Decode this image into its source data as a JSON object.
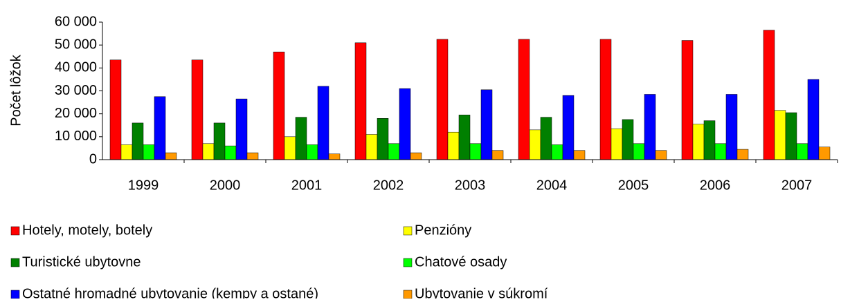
{
  "chart_data": {
    "type": "bar",
    "y_label": "Počet lôžok",
    "categories": [
      "1999",
      "2000",
      "2001",
      "2002",
      "2003",
      "2004",
      "2005",
      "2006",
      "2007"
    ],
    "series": [
      {
        "name": "Hotely, motely, botely",
        "color": "#ff0000",
        "values": [
          43500,
          43500,
          47000,
          51000,
          52500,
          52500,
          52500,
          52000,
          56500
        ]
      },
      {
        "name": "Penzióny",
        "color": "#ffff00",
        "values": [
          6500,
          7000,
          10000,
          11000,
          12000,
          13000,
          13500,
          15500,
          21500
        ]
      },
      {
        "name": "Turistické ubytovne",
        "color": "#008000",
        "values": [
          16000,
          16000,
          18500,
          18000,
          19500,
          18500,
          17500,
          17000,
          20500
        ]
      },
      {
        "name": "Chatové osady",
        "color": "#00ff00",
        "values": [
          6500,
          6000,
          6500,
          7000,
          7000,
          6500,
          7000,
          7000,
          7000
        ]
      },
      {
        "name": "Ostatné hromadné ubytovanie (kempy a ostané)",
        "color": "#0000ff",
        "values": [
          27500,
          26500,
          32000,
          31000,
          30500,
          28000,
          28500,
          28500,
          35000
        ]
      },
      {
        "name": "Ubytovanie v súkromí",
        "color": "#ff9900",
        "values": [
          3000,
          3000,
          2500,
          3000,
          4000,
          4000,
          4000,
          4500,
          5500
        ]
      }
    ],
    "ylim": [
      0,
      60000
    ],
    "yticks": [
      0,
      {
        "value": 10000,
        "label": "10 000"
      },
      {
        "value": 20000,
        "label": "20 000"
      },
      {
        "value": 30000,
        "label": "30 000"
      },
      {
        "value": 40000,
        "label": "40 000"
      },
      {
        "value": 50000,
        "label": "50 000"
      },
      {
        "value": 60000,
        "label": "60 000"
      }
    ],
    "grid": false,
    "legend": "bottom"
  }
}
